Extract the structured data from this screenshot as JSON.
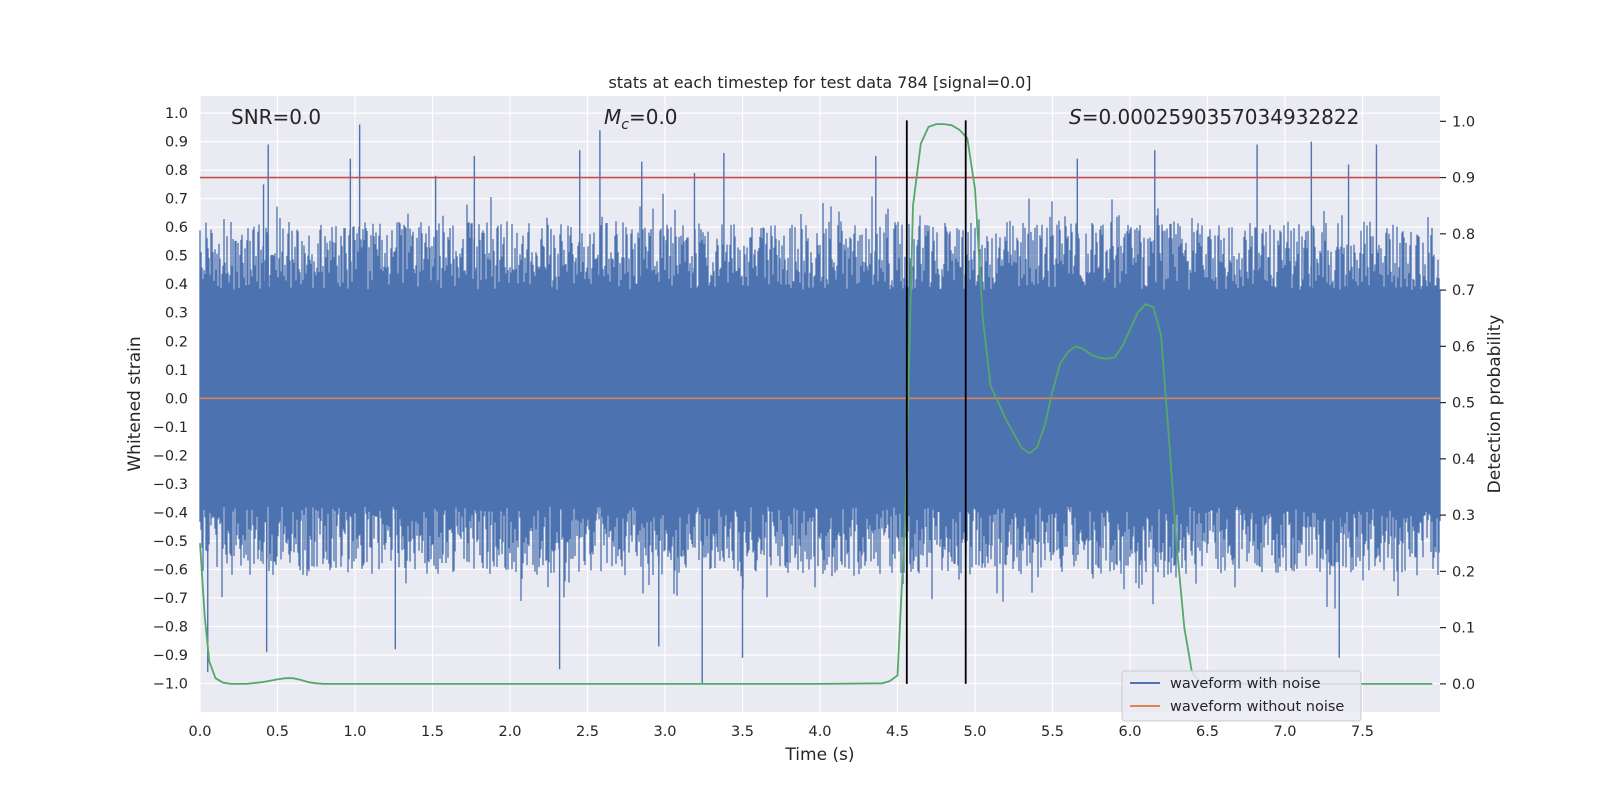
{
  "chart_data": {
    "type": "line",
    "title": "stats at each timestep for test data 784 [signal=0.0]",
    "xlabel": "Time (s)",
    "ylabel_left": "Whitened strain",
    "ylabel_right": "Detection probability",
    "xlim": [
      0.0,
      8.0
    ],
    "ylim_left": [
      -1.1,
      1.06
    ],
    "ylim_right": [
      -0.05,
      1.045
    ],
    "x_ticks": [
      "0.0",
      "0.5",
      "1.0",
      "1.5",
      "2.0",
      "2.5",
      "3.0",
      "3.5",
      "4.0",
      "4.5",
      "5.0",
      "5.5",
      "6.0",
      "6.5",
      "7.0",
      "7.5"
    ],
    "x_tick_values": [
      0.0,
      0.5,
      1.0,
      1.5,
      2.0,
      2.5,
      3.0,
      3.5,
      4.0,
      4.5,
      5.0,
      5.5,
      6.0,
      6.5,
      7.0,
      7.5
    ],
    "y_ticks_left": [
      "1.0",
      "0.9",
      "0.8",
      "0.7",
      "0.6",
      "0.5",
      "0.4",
      "0.3",
      "0.2",
      "0.1",
      "0.0",
      "−0.1",
      "−0.2",
      "−0.3",
      "−0.4",
      "−0.5",
      "−0.6",
      "−0.7",
      "−0.8",
      "−0.9",
      "−1.0"
    ],
    "y_tick_values_left": [
      1.0,
      0.9,
      0.8,
      0.7,
      0.6,
      0.5,
      0.4,
      0.3,
      0.2,
      0.1,
      0.0,
      -0.1,
      -0.2,
      -0.3,
      -0.4,
      -0.5,
      -0.6,
      -0.7,
      -0.8,
      -0.9,
      -1.0
    ],
    "y_ticks_right": [
      "1.0",
      "0.9",
      "0.8",
      "0.7",
      "0.6",
      "0.5",
      "0.4",
      "0.3",
      "0.2",
      "0.1",
      "0.0"
    ],
    "y_tick_values_right": [
      1.0,
      0.9,
      0.8,
      0.7,
      0.6,
      0.5,
      0.4,
      0.3,
      0.2,
      0.1,
      0.0
    ],
    "annotations": {
      "snr": "SNR=0.0",
      "mc_symbol": "M",
      "mc_sub": "c",
      "mc_value": "=0.0",
      "s_symbol": "S",
      "s_value": "=0.0002590357034932822"
    },
    "threshold": {
      "value": 0.9,
      "axis": "right",
      "color": "#c44e52"
    },
    "vlines": [
      4.56,
      4.94
    ],
    "series": [
      {
        "name": "waveform with noise",
        "color": "#4c72b0",
        "axis": "left",
        "kind": "noise",
        "envelope_pos": [
          0.38,
          0.62
        ],
        "envelope_neg": [
          -0.38,
          -0.62
        ],
        "peaks": [
          {
            "x": 0.05,
            "y": -0.96
          },
          {
            "x": 0.41,
            "y": 0.75
          },
          {
            "x": 0.44,
            "y": 0.89
          },
          {
            "x": 0.43,
            "y": -0.89
          },
          {
            "x": 0.97,
            "y": 0.84
          },
          {
            "x": 1.03,
            "y": 0.96
          },
          {
            "x": 1.26,
            "y": -0.88
          },
          {
            "x": 1.52,
            "y": 0.78
          },
          {
            "x": 1.77,
            "y": 0.85
          },
          {
            "x": 2.32,
            "y": -0.95
          },
          {
            "x": 2.45,
            "y": 0.87
          },
          {
            "x": 2.58,
            "y": 0.94
          },
          {
            "x": 2.85,
            "y": 0.83
          },
          {
            "x": 2.96,
            "y": -0.87
          },
          {
            "x": 3.19,
            "y": 0.79
          },
          {
            "x": 3.24,
            "y": -1.0
          },
          {
            "x": 3.38,
            "y": 0.86
          },
          {
            "x": 3.5,
            "y": -0.91
          },
          {
            "x": 4.36,
            "y": 0.85
          },
          {
            "x": 5.66,
            "y": 0.84
          },
          {
            "x": 6.16,
            "y": 0.87
          },
          {
            "x": 6.82,
            "y": 0.89
          },
          {
            "x": 7.17,
            "y": 0.9
          },
          {
            "x": 7.41,
            "y": 0.82
          },
          {
            "x": 7.35,
            "y": -0.91
          },
          {
            "x": 7.59,
            "y": 0.89
          }
        ]
      },
      {
        "name": "waveform without noise",
        "color": "#dd8452",
        "axis": "left",
        "x": [
          0.0,
          8.0
        ],
        "y": [
          0.0,
          0.0
        ]
      },
      {
        "name": "Detection probability",
        "color": "#55a868",
        "axis": "right",
        "x": [
          0.0,
          0.03,
          0.06,
          0.1,
          0.15,
          0.2,
          0.3,
          0.4,
          0.5,
          0.55,
          0.6,
          0.65,
          0.7,
          0.75,
          0.8,
          1.0,
          1.5,
          2.0,
          2.5,
          3.0,
          3.5,
          4.0,
          4.4,
          4.45,
          4.5,
          4.55,
          4.6,
          4.65,
          4.7,
          4.75,
          4.8,
          4.85,
          4.9,
          4.95,
          5.0,
          5.05,
          5.1,
          5.15,
          5.2,
          5.3,
          5.35,
          5.4,
          5.45,
          5.5,
          5.55,
          5.6,
          5.65,
          5.7,
          5.75,
          5.8,
          5.85,
          5.9,
          5.95,
          6.0,
          6.05,
          6.1,
          6.15,
          6.2,
          6.25,
          6.3,
          6.35,
          6.4,
          6.45,
          6.5,
          6.55,
          6.6,
          6.8,
          7.0,
          7.5,
          7.95
        ],
        "y": [
          0.25,
          0.12,
          0.04,
          0.01,
          0.002,
          0.0,
          0.0,
          0.003,
          0.008,
          0.01,
          0.01,
          0.007,
          0.003,
          0.001,
          0.0,
          0.0,
          0.0,
          0.0,
          0.0,
          0.0,
          0.0,
          0.0,
          0.001,
          0.005,
          0.015,
          0.3,
          0.85,
          0.96,
          0.99,
          0.995,
          0.995,
          0.993,
          0.985,
          0.97,
          0.88,
          0.65,
          0.53,
          0.5,
          0.47,
          0.42,
          0.41,
          0.42,
          0.46,
          0.52,
          0.57,
          0.59,
          0.6,
          0.595,
          0.585,
          0.58,
          0.578,
          0.58,
          0.6,
          0.63,
          0.66,
          0.675,
          0.67,
          0.62,
          0.44,
          0.25,
          0.1,
          0.02,
          0.005,
          0.0,
          0.0,
          0.0,
          0.0,
          0.0,
          0.0,
          0.0
        ]
      }
    ],
    "legend": {
      "position": "lower-right",
      "entries": [
        "waveform with noise",
        "waveform without noise"
      ]
    }
  }
}
